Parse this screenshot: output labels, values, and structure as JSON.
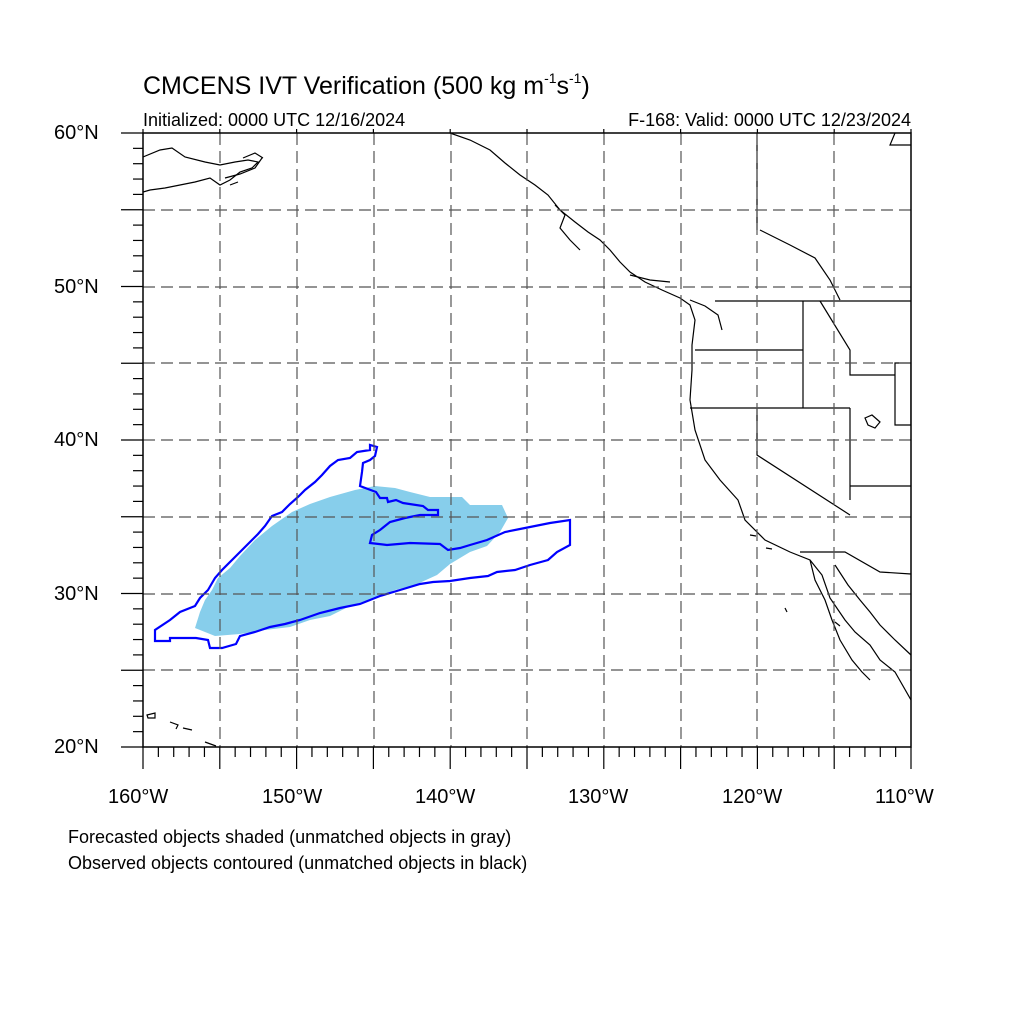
{
  "title": {
    "prefix": "CMCENS IVT Verification (500 kg m",
    "sup1": "-1",
    "mid": "s",
    "sup2": "-1",
    "suffix": ")"
  },
  "subtitle_left": "Initialized: 0000 UTC 12/16/2024",
  "subtitle_right": "F-168: Valid: 0000 UTC 12/23/2024",
  "lat_labels": [
    "60°N",
    "50°N",
    "40°N",
    "30°N",
    "20°N"
  ],
  "lon_labels": [
    "160°W",
    "150°W",
    "140°W",
    "130°W",
    "120°W",
    "110°W"
  ],
  "footnotes": [
    "Forecasted objects shaded (unmatched objects in gray)",
    "Observed objects contoured (unmatched objects in black)"
  ],
  "colors": {
    "forecast_fill": "#87ceeb",
    "observed_contour": "#0000ff",
    "coastline": "#000000",
    "grid": "#555555"
  },
  "map_extent": {
    "lon": [
      -160,
      -110
    ],
    "lat": [
      20,
      60
    ]
  }
}
